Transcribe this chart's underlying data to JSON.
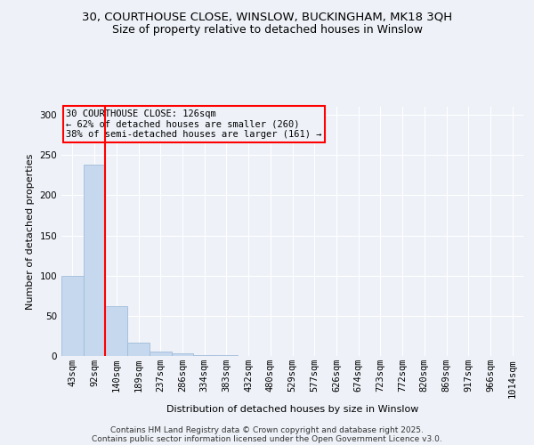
{
  "title_line1": "30, COURTHOUSE CLOSE, WINSLOW, BUCKINGHAM, MK18 3QH",
  "title_line2": "Size of property relative to detached houses in Winslow",
  "xlabel": "Distribution of detached houses by size in Winslow",
  "ylabel": "Number of detached properties",
  "categories": [
    "43sqm",
    "92sqm",
    "140sqm",
    "189sqm",
    "237sqm",
    "286sqm",
    "334sqm",
    "383sqm",
    "432sqm",
    "480sqm",
    "529sqm",
    "577sqm",
    "626sqm",
    "674sqm",
    "723sqm",
    "772sqm",
    "820sqm",
    "869sqm",
    "917sqm",
    "966sqm",
    "1014sqm"
  ],
  "values": [
    100,
    238,
    62,
    17,
    5,
    3,
    1,
    1,
    0,
    0,
    0,
    0,
    0,
    0,
    0,
    0,
    0,
    0,
    0,
    0,
    0
  ],
  "bar_color": "#c5d8ed",
  "bar_edge_color": "#a0bcda",
  "ylim": [
    0,
    310
  ],
  "yticks": [
    0,
    50,
    100,
    150,
    200,
    250,
    300
  ],
  "vline_x": 1.5,
  "annotation_text": "30 COURTHOUSE CLOSE: 126sqm\n← 62% of detached houses are smaller (260)\n38% of semi-detached houses are larger (161) →",
  "annotation_box_color": "#ff0000",
  "vline_color": "#ff0000",
  "footer_line1": "Contains HM Land Registry data © Crown copyright and database right 2025.",
  "footer_line2": "Contains public sector information licensed under the Open Government Licence v3.0.",
  "background_color": "#eef2f8",
  "grid_color": "#ffffff",
  "title_fontsize": 9.5,
  "subtitle_fontsize": 9,
  "label_fontsize": 8,
  "tick_fontsize": 7.5,
  "annotation_fontsize": 7.5,
  "bar_width": 1.0
}
